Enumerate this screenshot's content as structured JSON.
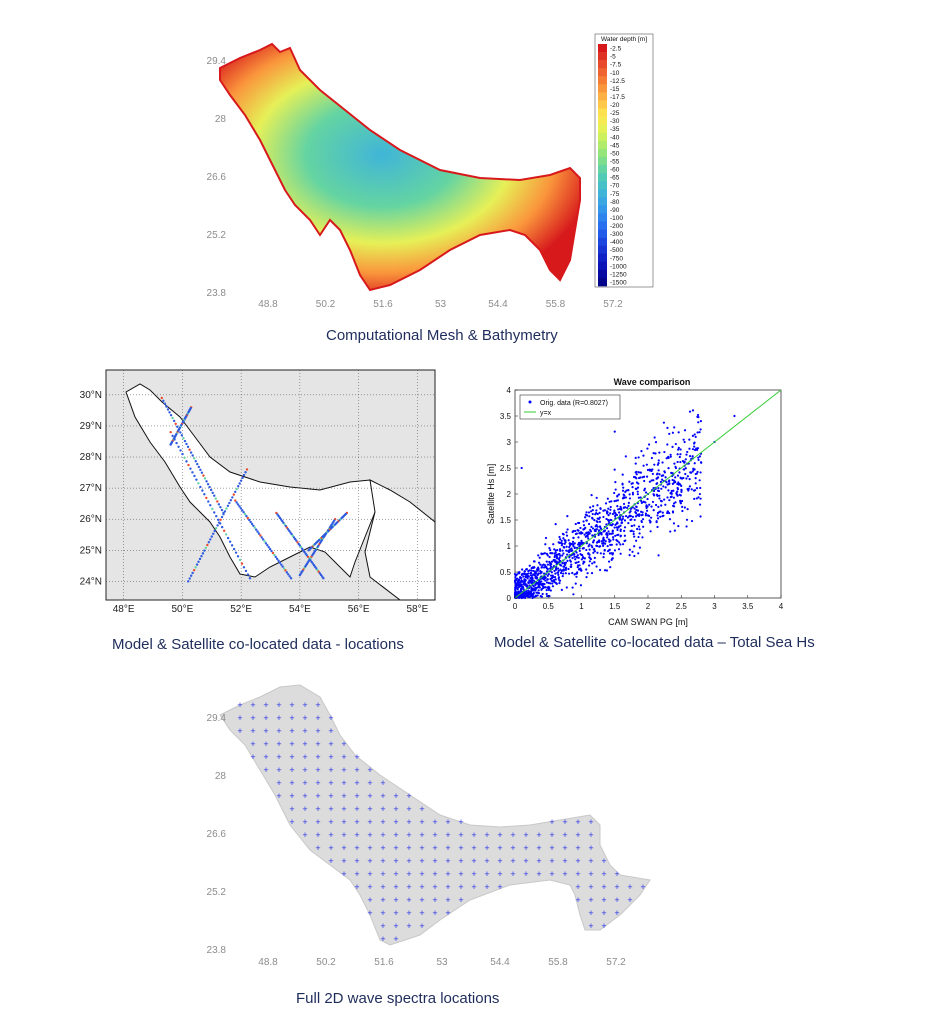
{
  "captions": {
    "mesh": "Computational Mesh & Bathymetry",
    "locations": "Model & Satellite co-located data - locations",
    "hs": "Model & Satellite co-located data – Total Sea Hs",
    "spectra": "Full 2D wave spectra locations"
  },
  "colors": {
    "caption": "#1f2d5c",
    "scatter": "#0000ff",
    "line": "#33cc33",
    "land": "#e5e5e5",
    "sea_gray": "#dcdcdc"
  },
  "chart_data": [
    {
      "type": "heatmap",
      "name": "bathymetry",
      "x_ticks": [
        "48.8",
        "50.2",
        "51.6",
        "53",
        "54.4",
        "55.8",
        "57.2"
      ],
      "y_ticks": [
        "29.4",
        "28",
        "26.6",
        "25.2",
        "23.8"
      ],
      "colorbar_title": "Water depth [m]",
      "colorbar_labels": [
        "-2.5",
        "-5",
        "-7.5",
        "-10",
        "-12.5",
        "-15",
        "-17.5",
        "-20",
        "-25",
        "-30",
        "-35",
        "-40",
        "-45",
        "-50",
        "-55",
        "-60",
        "-65",
        "-70",
        "-75",
        "-80",
        "-90",
        "-100",
        "-200",
        "-300",
        "-400",
        "-500",
        "-750",
        "-1000",
        "-1250",
        "-1500"
      ],
      "colorbar_colors": [
        "#d7191c",
        "#e03224",
        "#e94a2b",
        "#f06431",
        "#f57d36",
        "#fa963c",
        "#fdb043",
        "#fec94b",
        "#fde04f",
        "#f5ea52",
        "#e6f057",
        "#cdf05e",
        "#b0ec6a",
        "#95e57a",
        "#7cdd8d",
        "#64d4a2",
        "#52cbb6",
        "#47c1c8",
        "#40b5d8",
        "#3aa7e3",
        "#3597ea",
        "#2f84ee",
        "#2970ee",
        "#225ae9",
        "#1c46e0",
        "#1633d4",
        "#1022c6",
        "#0b14b6",
        "#0709a3",
        "#04038c"
      ]
    },
    {
      "type": "scatter",
      "name": "locations_map",
      "x_ticks": [
        "48°E",
        "50°E",
        "52°E",
        "54°E",
        "56°E",
        "58°E"
      ],
      "y_ticks": [
        "30°N",
        "29°N",
        "28°N",
        "27°N",
        "26°N",
        "25°N",
        "24°N"
      ],
      "xlim": [
        47.4,
        58.6
      ],
      "ylim": [
        23.4,
        30.8
      ]
    },
    {
      "type": "scatter",
      "title": "Wave comparison",
      "xlabel": "CAM SWAN PG [m]",
      "ylabel": "Satellite Hs [m]",
      "xlim": [
        0,
        4
      ],
      "ylim": [
        0,
        4
      ],
      "x_ticks": [
        "0",
        "0.5",
        "1",
        "1.5",
        "2",
        "2.5",
        "3",
        "3.5",
        "4"
      ],
      "y_ticks": [
        "0",
        "0.5",
        "1",
        "1.5",
        "2",
        "2.5",
        "3",
        "3.5",
        "4"
      ],
      "legend": [
        "Orig. data (R=0.8027)",
        "y=x"
      ],
      "legend_position": "top-left",
      "series": [
        {
          "name": "Orig. data (R=0.8027)",
          "points": [
            [
              0.2,
              0.3
            ],
            [
              0.4,
              0.5
            ],
            [
              0.6,
              0.7
            ],
            [
              0.8,
              0.9
            ],
            [
              1.0,
              1.1
            ],
            [
              1.2,
              1.2
            ],
            [
              1.4,
              1.5
            ],
            [
              1.6,
              1.7
            ],
            [
              1.8,
              1.8
            ],
            [
              2.0,
              2.0
            ],
            [
              2.2,
              2.1
            ],
            [
              2.5,
              2.3
            ],
            [
              2.8,
              2.6
            ],
            [
              3.0,
              3.0
            ],
            [
              3.3,
              3.5
            ],
            [
              0.1,
              2.5
            ],
            [
              1.5,
              3.2
            ]
          ]
        },
        {
          "name": "y=x",
          "points": [
            [
              0,
              0
            ],
            [
              4,
              4
            ]
          ]
        }
      ]
    },
    {
      "type": "scatter",
      "name": "spectra_locations",
      "x_ticks": [
        "48.8",
        "50.2",
        "51.6",
        "53",
        "54.4",
        "55.8",
        "57.2"
      ],
      "y_ticks": [
        "29.4",
        "28",
        "26.6",
        "25.2",
        "23.8"
      ],
      "marker": "+"
    }
  ]
}
